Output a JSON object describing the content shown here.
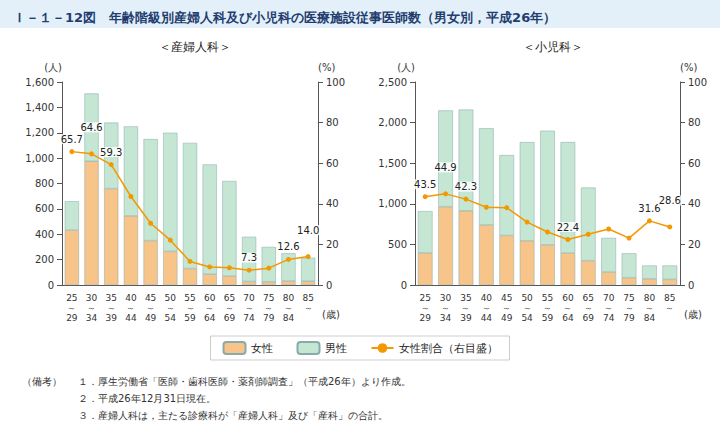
{
  "title": "Ｉ－１－12図　年齢階級別産婦人科及び小児科の医療施設従事医師数（男女別，平成26年）",
  "notes_heading": "（備考）",
  "notes": [
    "１．厚生労働省「医師・歯科医師・薬剤師調査」（平成26年）より作成。",
    "２．平成26年12月31日現在。",
    "３．産婦人科は，主たる診療科が「産婦人科」及び「産科」の合計。"
  ],
  "chart_data": [
    {
      "type": "bar",
      "title": "＜産婦人科＞",
      "ylabel": "(人)",
      "y2label": "(%)",
      "xlabel": "(歳)",
      "categories": [
        "25\n～\n29",
        "30\n～\n34",
        "35\n～\n39",
        "40\n～\n44",
        "45\n～\n49",
        "50\n～\n54",
        "55\n～\n59",
        "60\n～\n64",
        "65\n～\n69",
        "70\n～\n74",
        "75\n～\n79",
        "80\n～\n84",
        "85\n～"
      ],
      "stacked": true,
      "grid": false,
      "legend": "bottom",
      "ylim": [
        0,
        1600
      ],
      "yticks": [
        0,
        200,
        400,
        600,
        800,
        {
          "value": 1000,
          "label": "1,000"
        },
        {
          "value": 1200,
          "label": "1,200"
        },
        {
          "value": 1400,
          "label": "1,400"
        },
        {
          "value": 1600,
          "label": "1,600"
        }
      ],
      "y2lim": [
        0,
        100
      ],
      "y2ticks": [
        0,
        20,
        40,
        60,
        80,
        100
      ],
      "series": [
        {
          "name": "女性",
          "type": "bar",
          "color": "#f7c48a",
          "values": [
            433,
            975,
            760,
            545,
            350,
            265,
            130,
            85,
            70,
            28,
            25,
            32,
            30
          ]
        },
        {
          "name": "男性",
          "type": "bar",
          "color": "#c4e6d3",
          "values": [
            227,
            535,
            520,
            705,
            800,
            935,
            990,
            865,
            750,
            352,
            275,
            218,
            185
          ]
        },
        {
          "name": "女性割合（右目盛）",
          "type": "line",
          "axis": "y2",
          "marker": "circle",
          "color": "#f39800",
          "values": [
            65.7,
            64.6,
            59.3,
            43.6,
            30.4,
            22.1,
            11.6,
            8.9,
            8.5,
            7.3,
            8.3,
            12.6,
            14.0
          ],
          "value_labels": [
            "65.7",
            "64.6",
            "59.3",
            null,
            null,
            null,
            null,
            null,
            null,
            "7.3",
            null,
            "12.6",
            "14.0"
          ]
        }
      ]
    },
    {
      "type": "bar",
      "title": "＜小児科＞",
      "ylabel": "(人)",
      "y2label": "(%)",
      "xlabel": "(歳)",
      "categories": [
        "25\n～\n29",
        "30\n～\n34",
        "35\n～\n39",
        "40\n～\n44",
        "45\n～\n49",
        "50\n～\n54",
        "55\n～\n59",
        "60\n～\n64",
        "65\n～\n69",
        "70\n～\n74",
        "75\n～\n79",
        "80\n～\n84",
        "85\n～"
      ],
      "stacked": true,
      "grid": false,
      "legend": "bottom",
      "ylim": [
        0,
        2500
      ],
      "yticks": [
        0,
        500,
        {
          "value": 1000,
          "label": "1,000"
        },
        {
          "value": 1500,
          "label": "1,500"
        },
        {
          "value": 2000,
          "label": "2,000"
        },
        {
          "value": 2500,
          "label": "2,500"
        }
      ],
      "y2lim": [
        0,
        100
      ],
      "y2ticks": [
        0,
        20,
        40,
        60,
        80,
        100
      ],
      "series": [
        {
          "name": "女性",
          "type": "bar",
          "color": "#f7c48a",
          "values": [
            396,
            965,
            914,
            740,
            610,
            545,
            495,
            394,
            300,
            160,
            90,
            76,
            69
          ]
        },
        {
          "name": "男性",
          "type": "bar",
          "color": "#c4e6d3",
          "values": [
            514,
            1185,
            1246,
            1190,
            990,
            1215,
            1405,
            1366,
            900,
            420,
            300,
            164,
            171
          ]
        },
        {
          "name": "女性割合（右目盛）",
          "type": "line",
          "axis": "y2",
          "marker": "circle",
          "color": "#f39800",
          "values": [
            43.5,
            44.9,
            42.3,
            38.3,
            38.1,
            31.0,
            26.1,
            22.4,
            25.0,
            27.6,
            23.1,
            31.6,
            28.6
          ],
          "value_labels": [
            "43.5",
            "44.9",
            "42.3",
            null,
            null,
            null,
            null,
            "22.4",
            null,
            null,
            null,
            "31.6",
            "28.6"
          ]
        }
      ]
    }
  ]
}
